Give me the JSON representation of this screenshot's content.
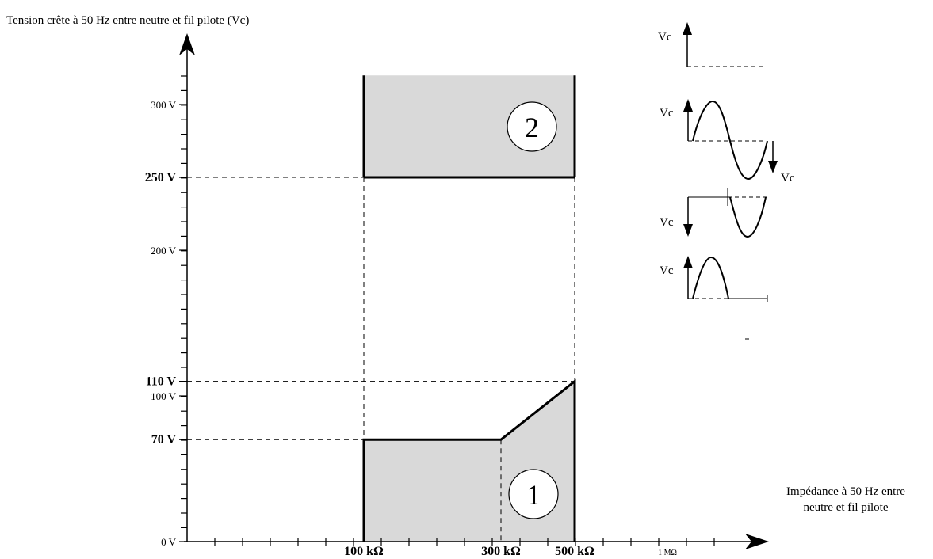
{
  "chart_data": {
    "type": "area",
    "title": "Tension crête à 50 Hz entre neutre et fil pilote (Vc)",
    "xlabel_line1": "Impédance à 50 Hz entre",
    "xlabel_line2": "neutre et fil pilote",
    "y_ticks": [
      {
        "v": 0,
        "label": "0 V",
        "bold": false
      },
      {
        "v": 70,
        "label": "70 V",
        "bold": true
      },
      {
        "v": 100,
        "label": "100 V",
        "bold": false
      },
      {
        "v": 110,
        "label": "110 V",
        "bold": true
      },
      {
        "v": 200,
        "label": "200 V",
        "bold": false
      },
      {
        "v": 250,
        "label": "250 V",
        "bold": true
      },
      {
        "v": 300,
        "label": "300 V",
        "bold": false
      }
    ],
    "x_ticks": [
      {
        "v": 100,
        "label": "100 kΩ",
        "bold": true
      },
      {
        "v": 300,
        "label": "300 kΩ",
        "bold": true
      },
      {
        "v": 500,
        "label": "500 kΩ",
        "bold": true
      },
      {
        "v": 1000,
        "label": "1 MΩ",
        "bold": false
      }
    ],
    "zones": [
      {
        "name": "1",
        "boundary": [
          [
            100,
            0
          ],
          [
            100,
            70
          ],
          [
            300,
            70
          ],
          [
            500,
            110
          ],
          [
            500,
            0
          ]
        ]
      },
      {
        "name": "2",
        "boundary": [
          [
            100,
            250
          ],
          [
            100,
            320
          ],
          [
            500,
            320
          ],
          [
            500,
            250
          ]
        ]
      }
    ]
  },
  "legend_symbols": [
    {
      "label": "Vc",
      "shape": "dc-step"
    },
    {
      "label": "Vc",
      "label2": "Vc",
      "shape": "full-sine"
    },
    {
      "label": "Vc",
      "shape": "negative-half-wave"
    },
    {
      "label": "Vc",
      "shape": "positive-half-wave"
    }
  ]
}
